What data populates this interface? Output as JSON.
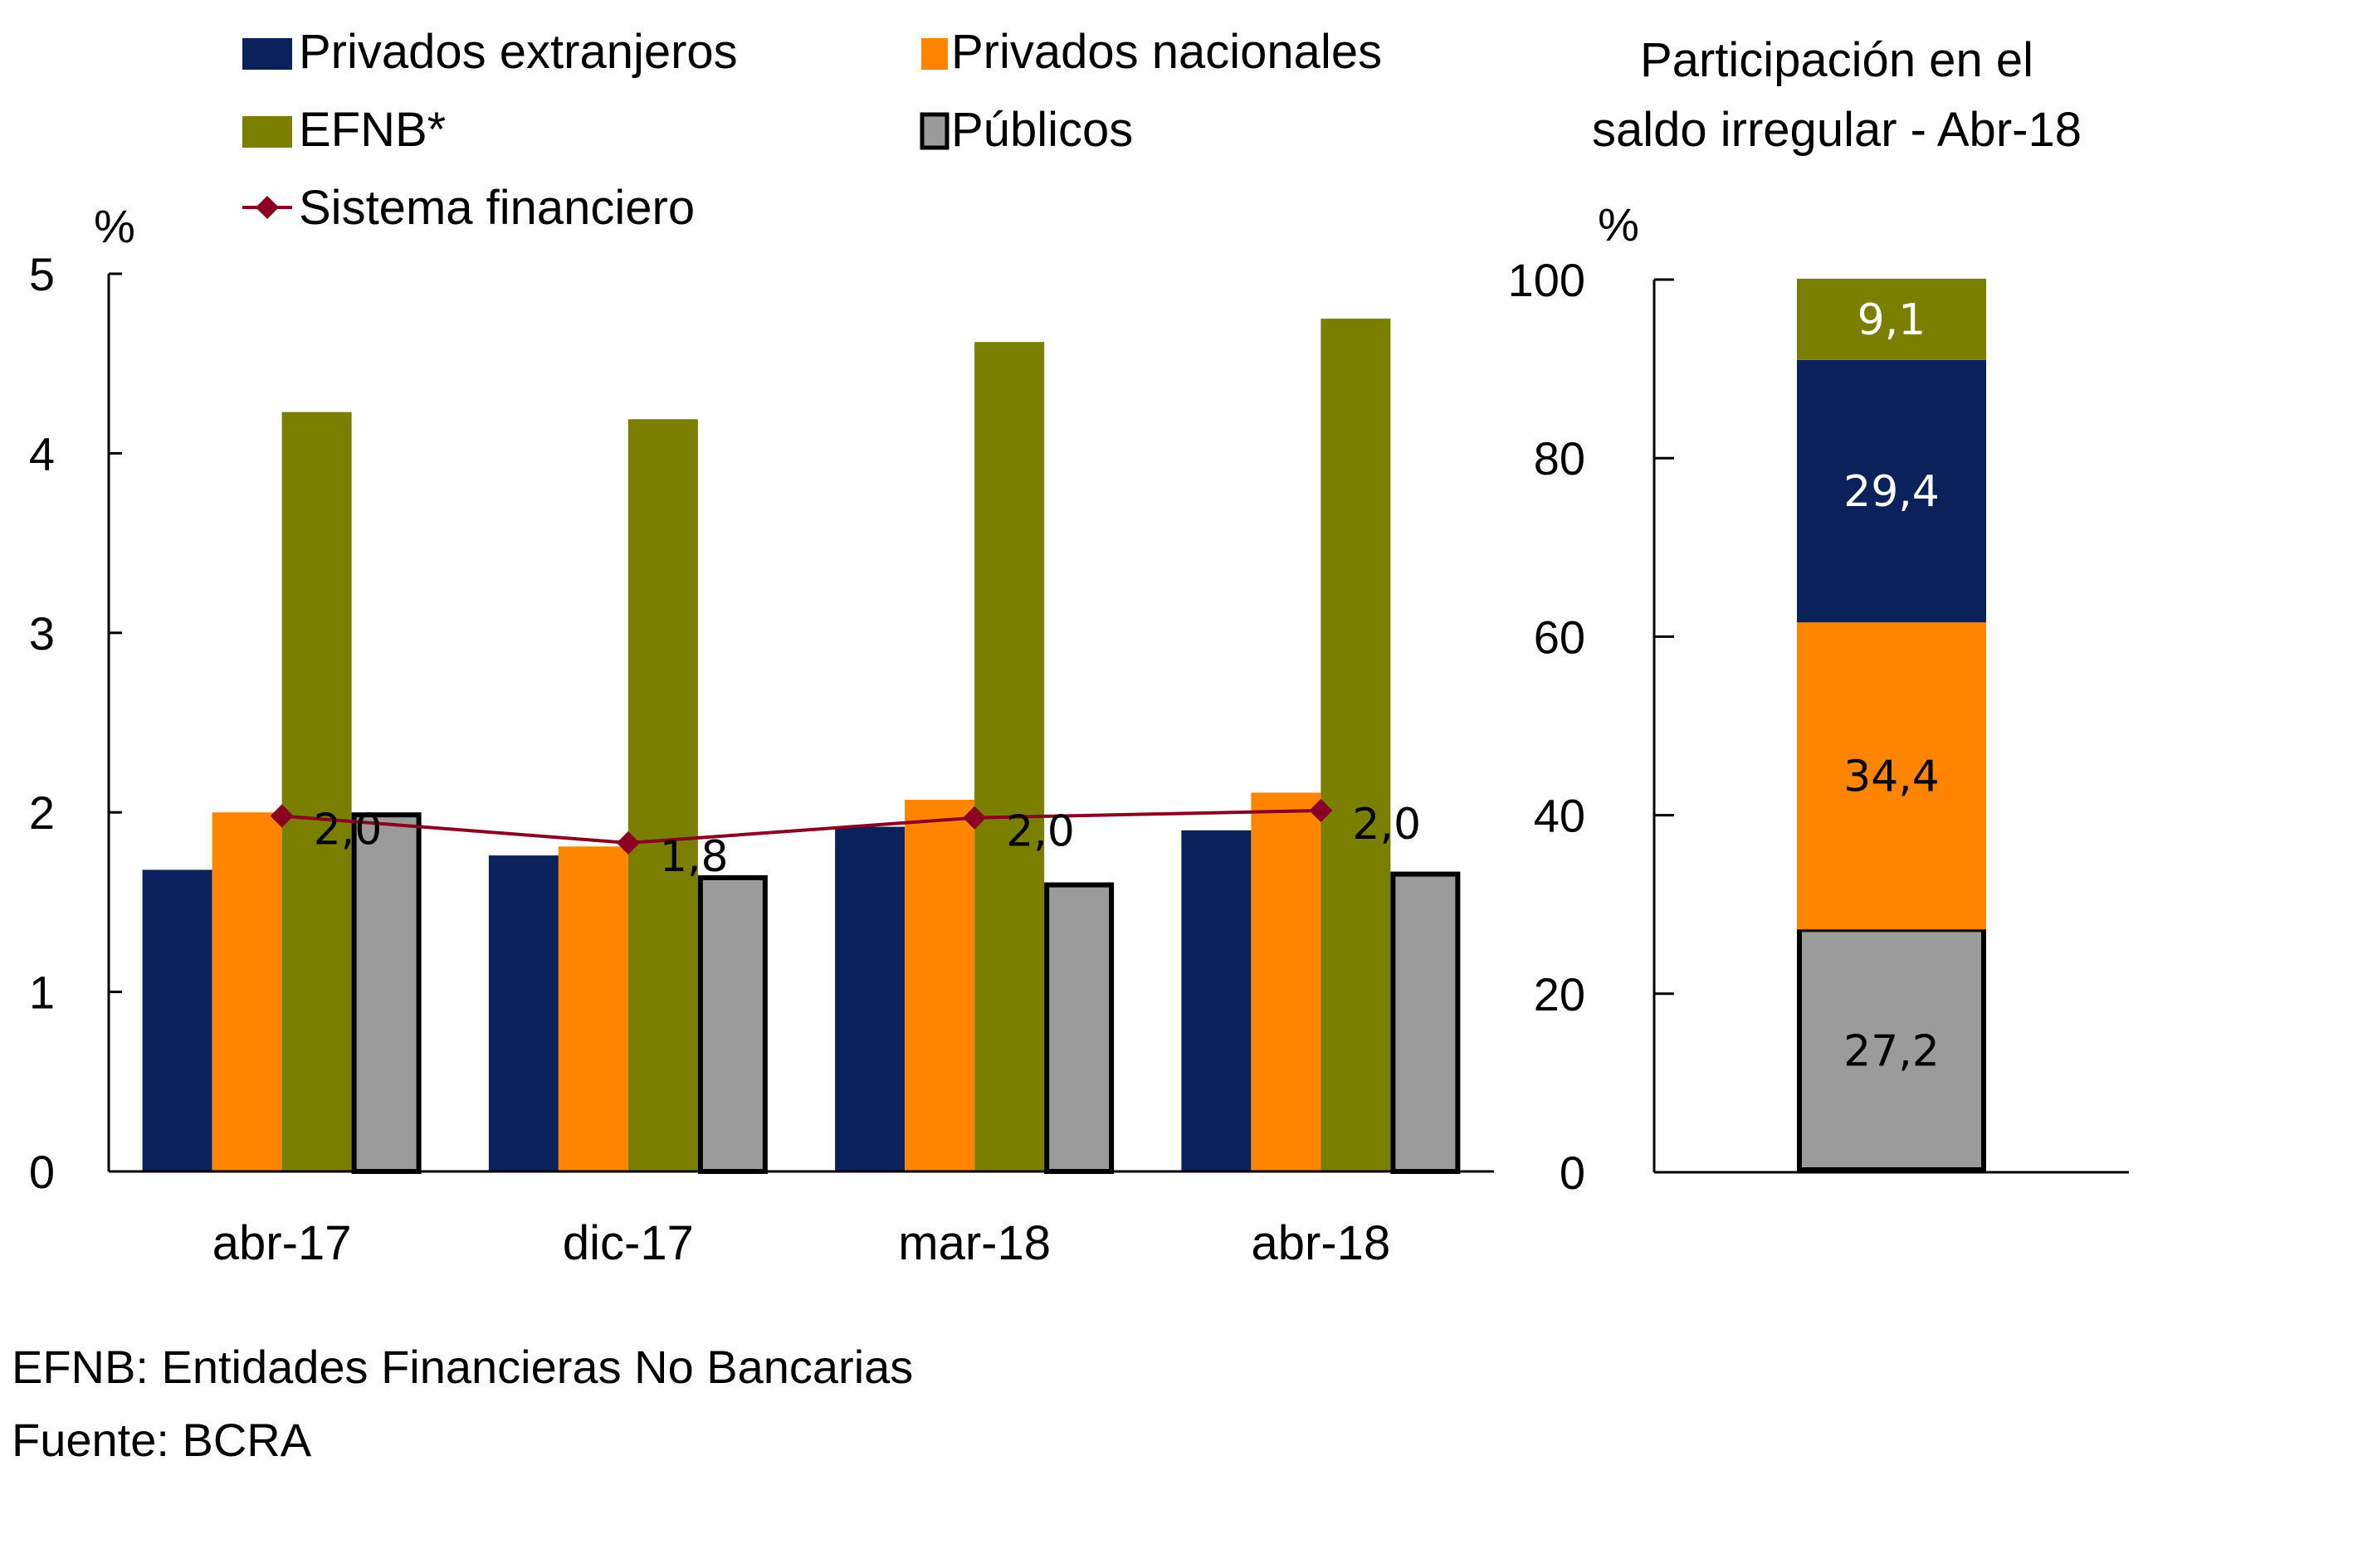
{
  "legend": {
    "items": [
      {
        "name": "Privados extranjeros",
        "color": "#0A215B",
        "type": "bar"
      },
      {
        "name": "Privados nacionales",
        "color": "#FF8500",
        "type": "bar"
      },
      {
        "name": "EFNB*",
        "color": "#7A7F00",
        "type": "bar"
      },
      {
        "name": "Públicos",
        "color": "#9B9B9B",
        "type": "bar-outlined"
      },
      {
        "name": "Sistema financiero",
        "color": "#8B0021",
        "type": "line-diamond"
      }
    ]
  },
  "right_title": [
    "Participación en el",
    "saldo irregular - Abr-18"
  ],
  "footnotes": {
    "definition": "EFNB: Entidades Financieras No Bancarias",
    "source": "Fuente: BCRA"
  },
  "chart_data": [
    {
      "type": "bar",
      "title": "",
      "xlabel": "",
      "ylabel": "%",
      "ylim": [
        0,
        5
      ],
      "yticks": [
        "0",
        "1",
        "2",
        "3",
        "4",
        "5"
      ],
      "categories": [
        "abr-17",
        "dic-17",
        "mar-18",
        "abr-18"
      ],
      "series": [
        {
          "name": "Privados extranjeros",
          "type": "bar",
          "color": "#0A215B",
          "values": [
            1.68,
            1.76,
            1.92,
            1.9
          ]
        },
        {
          "name": "Privados nacionales",
          "type": "bar",
          "color": "#FF8500",
          "values": [
            2.0,
            1.81,
            2.07,
            2.11
          ]
        },
        {
          "name": "EFNB*",
          "type": "bar",
          "color": "#7A7F00",
          "values": [
            4.23,
            4.19,
            4.62,
            4.75
          ]
        },
        {
          "name": "Públicos",
          "type": "bar",
          "color": "#9B9B9B",
          "outline": "#000000",
          "values": [
            2.0,
            1.65,
            1.61,
            1.67
          ]
        },
        {
          "name": "Sistema financiero",
          "type": "line",
          "color": "#8B0021",
          "marker": "diamond",
          "values": [
            1.98,
            1.83,
            1.97,
            2.01
          ],
          "labels": [
            "2,0",
            "1,8",
            "2,0",
            "2,0"
          ]
        }
      ],
      "grid": false,
      "legend_position": "top"
    },
    {
      "type": "bar",
      "stacked": true,
      "title": "Participación en el saldo irregular - Abr-18",
      "xlabel": "",
      "ylabel": "%",
      "ylim": [
        0,
        100
      ],
      "yticks": [
        "0",
        "20",
        "40",
        "60",
        "80",
        "100"
      ],
      "categories": [
        "Abr-18"
      ],
      "series": [
        {
          "name": "Públicos",
          "color": "#9B9B9B",
          "outline": "#000000",
          "value": 27.2,
          "label": "27,2",
          "label_color": "#000000"
        },
        {
          "name": "Privados nacionales",
          "color": "#FF8500",
          "value": 34.4,
          "label": "34,4",
          "label_color": "#000000"
        },
        {
          "name": "Privados extranjeros",
          "color": "#0A215B",
          "value": 29.4,
          "label": "29,4",
          "label_color": "#FFFFFF"
        },
        {
          "name": "EFNB*",
          "color": "#7A7F00",
          "value": 9.1,
          "label": "9,1",
          "label_color": "#FFFFFF"
        }
      ],
      "grid": false
    }
  ]
}
